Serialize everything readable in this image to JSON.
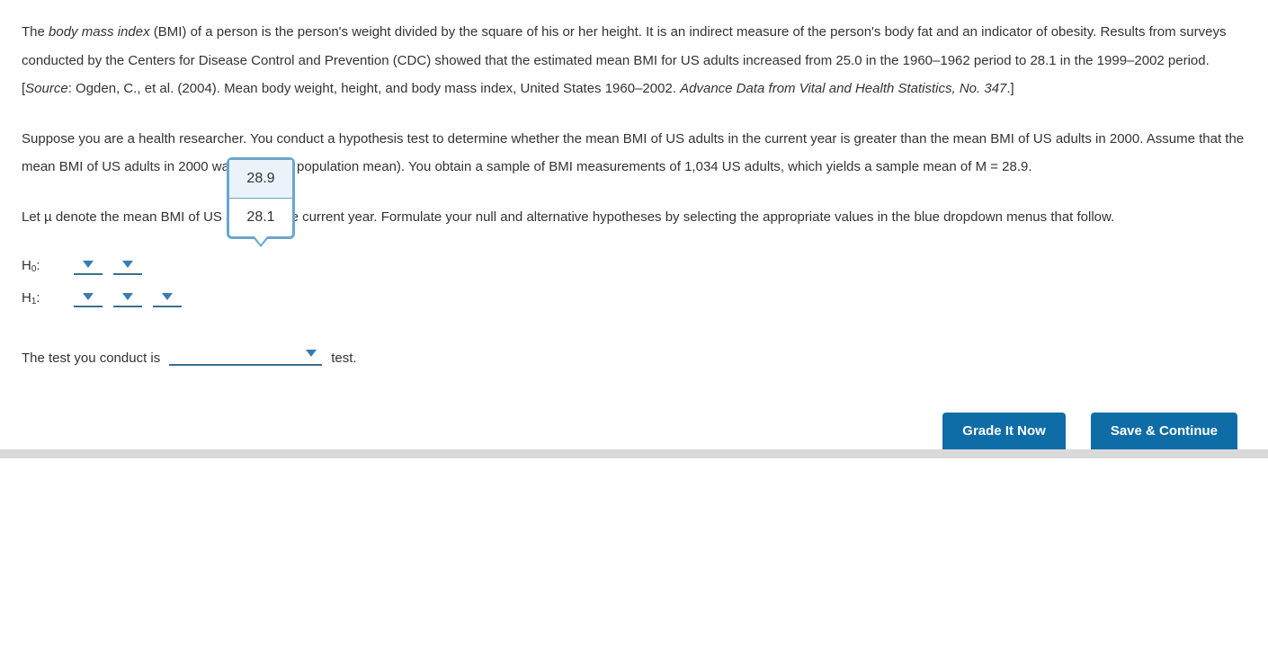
{
  "paragraphs": {
    "p1_prefix": "The ",
    "p1_bmi_term": "body mass index",
    "p1_mid": " (BMI) of a person is the person's weight divided by the square of his or her height. It is an indirect measure of the person's body fat and an indicator of obesity. Results from surveys conducted by the Centers for Disease Control and Prevention (CDC) showed that the estimated mean BMI for US adults increased from 25.0 in the 1960–1962 period to 28.1 in the 1999–2002 period. [",
    "p1_source_label": "Source",
    "p1_after_source": ": Ogden, C., et al. (2004). Mean body weight, height, and body mass index, United States 1960–2002. ",
    "p1_journal": "Advance Data from Vital and Health Statistics, No. 347",
    "p1_end": ".]",
    "p2": "Suppose you are a health researcher. You conduct a hypothesis test to determine whether the mean BMI of US adults in the current year is greater than the mean BMI of US adults in 2000. Assume that the mean BMI of US adults in 2000 was 28.1 (the population mean). You obtain a sample of BMI measurements of 1,034 US adults, which yields a sample mean of M = 28.9.",
    "p3": "Let µ denote the mean BMI of US adults in the current year. Formulate your null and alternative hypotheses by selecting the appropriate values in the blue dropdown menus that follow."
  },
  "hypotheses": {
    "h0_label": "H",
    "h0_sub": "0",
    "h0_colon": ":",
    "h1_label": "H",
    "h1_sub": "1",
    "h1_colon": ":"
  },
  "popup_options": [
    "28.9",
    "28.1"
  ],
  "sentence": {
    "before": "The test you conduct is",
    "after": "test."
  },
  "buttons": {
    "grade": "Grade It Now",
    "save": "Save & Continue"
  },
  "colors": {
    "link_blue": "#3a7bb0",
    "underline": "#3a6f8f",
    "popup_border": "#6aa6cf",
    "button_bg": "#0e6da6"
  }
}
